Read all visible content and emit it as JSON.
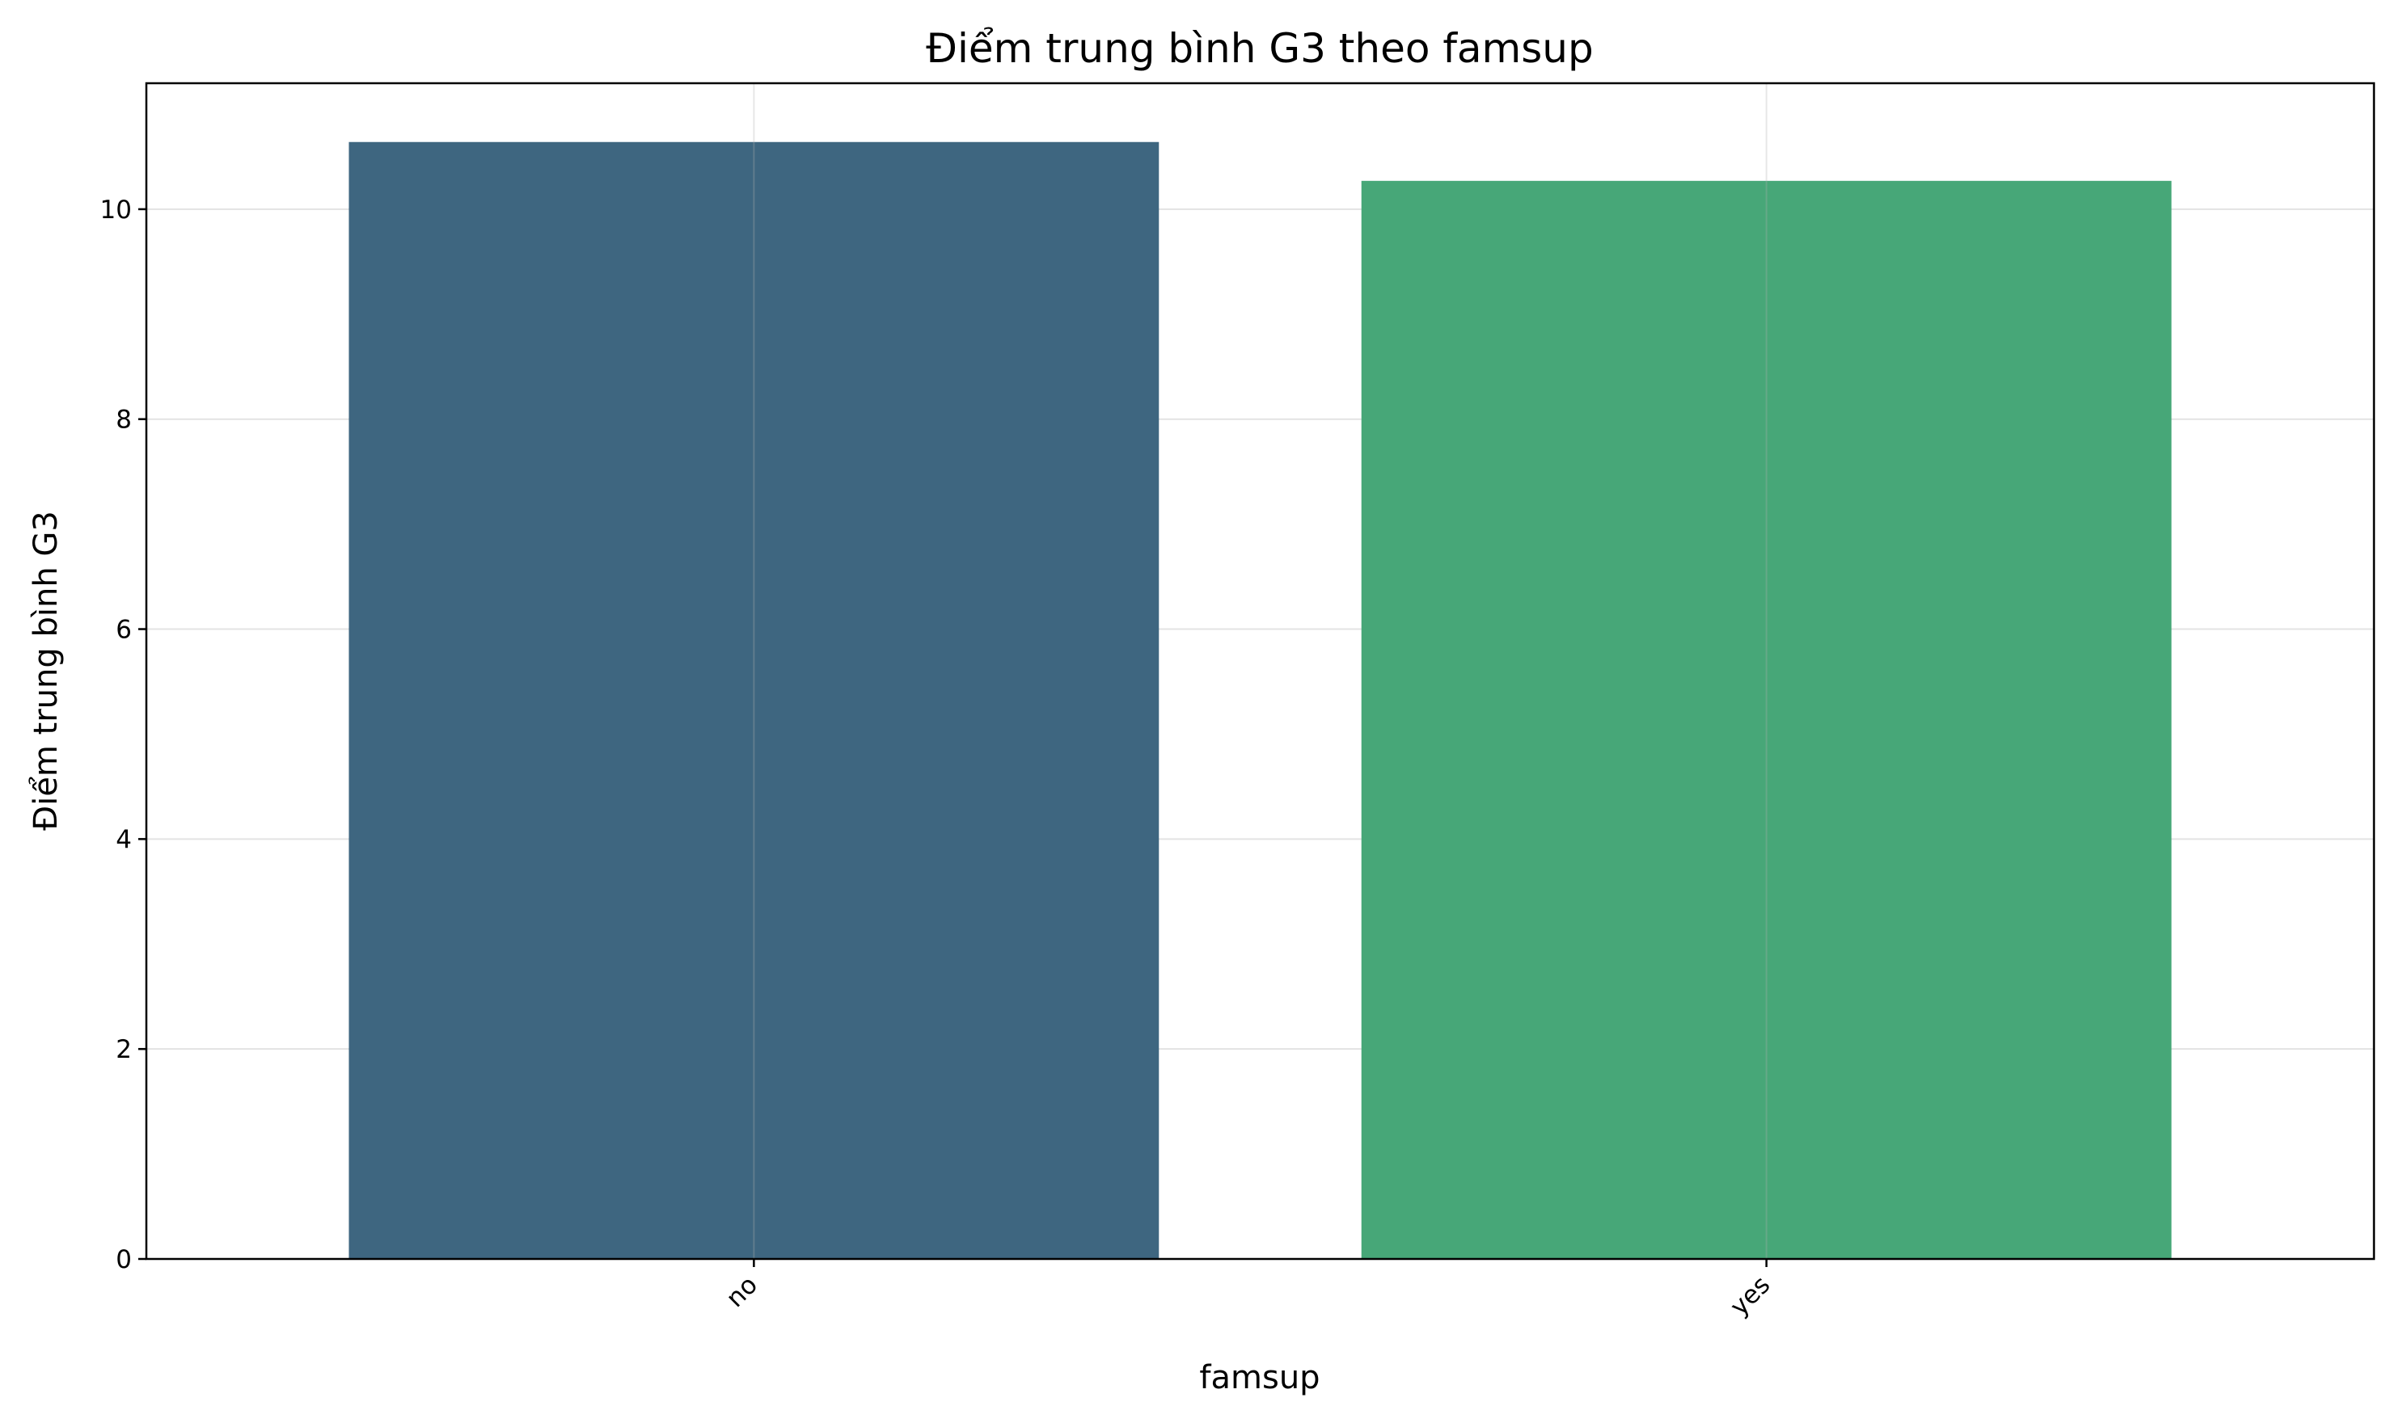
{
  "chart_data": {
    "type": "bar",
    "title": "Điểm trung bình G3 theo famsup",
    "xlabel": "famsup",
    "ylabel": "Điểm trung bình G3",
    "categories": [
      "no",
      "yes"
    ],
    "values": [
      10.64,
      10.27
    ],
    "colors": [
      "#3e6680",
      "#47a778"
    ],
    "ylim": [
      0,
      11.2
    ],
    "yticks": [
      0,
      2,
      4,
      6,
      8,
      10
    ],
    "ytick_labels": [
      "0",
      "2",
      "4",
      "6",
      "8",
      "10"
    ],
    "grid": true,
    "xtick_rotation": 45
  }
}
